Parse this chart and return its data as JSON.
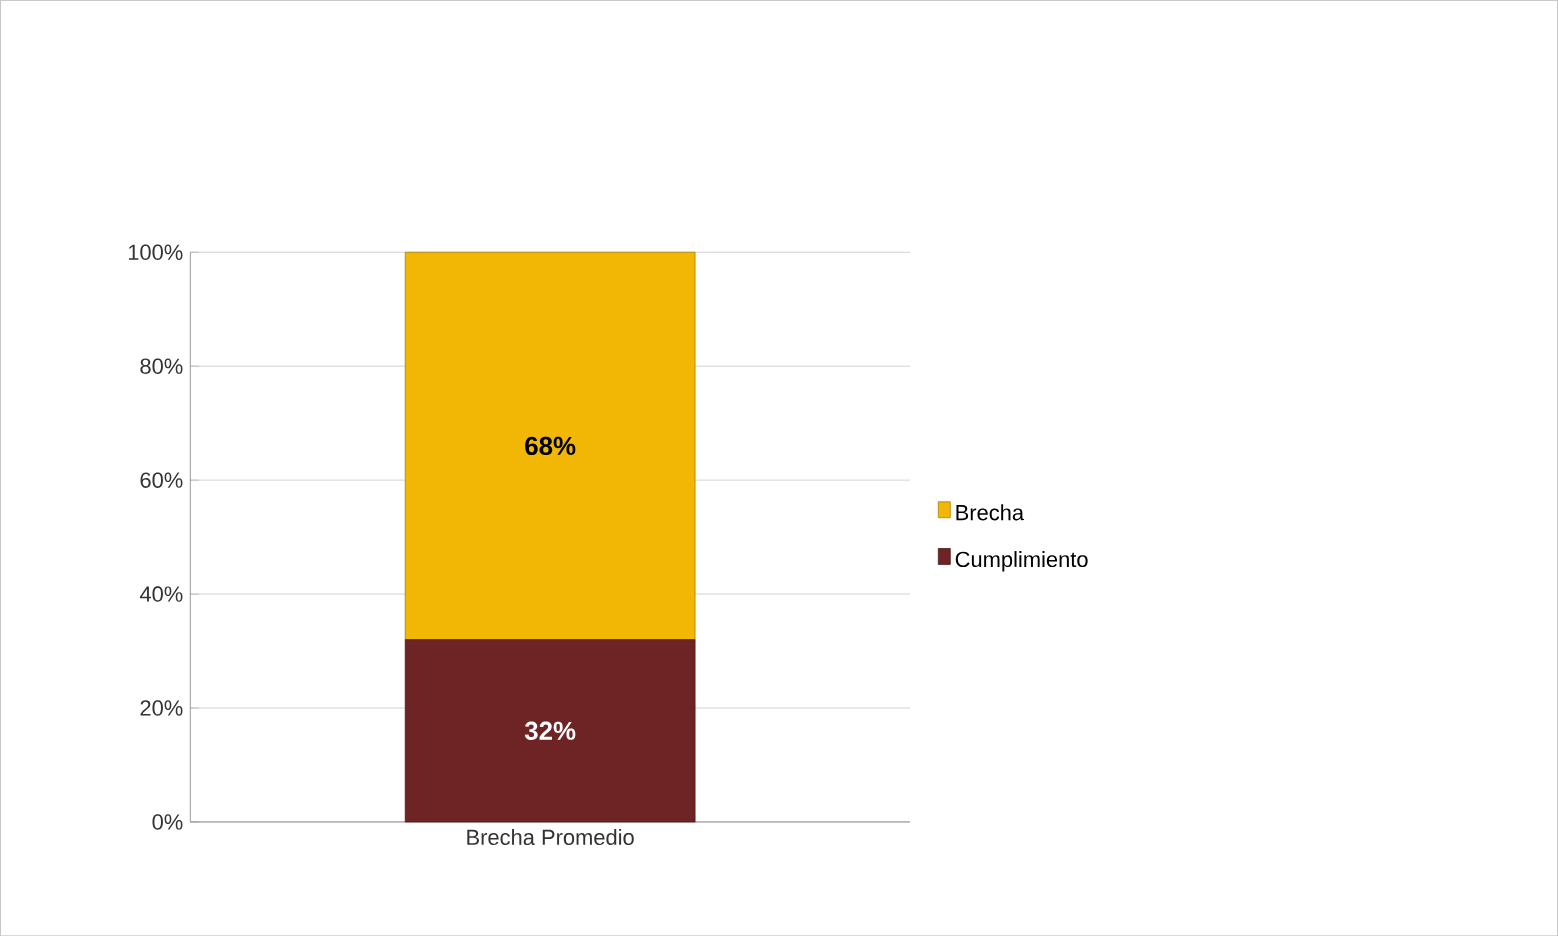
{
  "chart_data": {
    "type": "bar",
    "stacked": true,
    "categories": [
      "Brecha Promedio"
    ],
    "series": [
      {
        "name": "Cumplimiento",
        "color": "#6e2424",
        "values": [
          32
        ],
        "value_labels": [
          "32%"
        ]
      },
      {
        "name": "Brecha",
        "color": "#f2b705",
        "values": [
          68
        ],
        "value_labels": [
          "68%"
        ]
      }
    ],
    "ylim": [
      0,
      100
    ],
    "yticks": [
      {
        "value": 0,
        "label": "0%"
      },
      {
        "value": 20,
        "label": "20%"
      },
      {
        "value": 40,
        "label": "40%"
      },
      {
        "value": 60,
        "label": "60%"
      },
      {
        "value": 80,
        "label": "80%"
      },
      {
        "value": 100,
        "label": "100%"
      }
    ],
    "grid": "y",
    "legend": "right"
  }
}
